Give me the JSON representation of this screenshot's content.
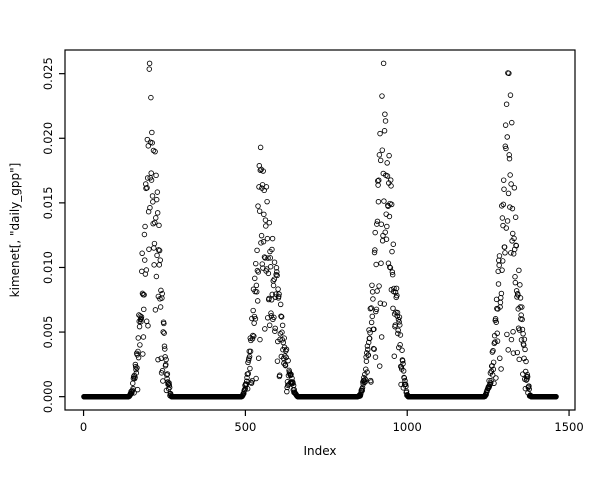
{
  "figure": {
    "background": "#ffffff",
    "foreground": "#000000"
  },
  "chart_data": {
    "type": "scatter",
    "title": "",
    "xlabel": "Index",
    "ylabel": "kimenet[, \"daily_gpp\"]",
    "xlim": [
      0,
      1500
    ],
    "ylim": [
      0.0,
      0.025
    ],
    "x_ticks": [
      0,
      500,
      1000,
      1500
    ],
    "x_tick_labels": [
      "0",
      "500",
      "1000",
      "1500"
    ],
    "y_ticks": [
      0.0,
      0.005,
      0.01,
      0.015,
      0.02,
      0.025
    ],
    "y_tick_labels": [
      "0.000",
      "0.005",
      "0.010",
      "0.015",
      "0.020",
      "0.025"
    ],
    "grid": false,
    "legend": false,
    "marker": {
      "shape": "open-circle",
      "color": "#000000"
    },
    "n_points": 1460,
    "seed": 42,
    "pattern": {
      "description": "Seasonal GPP time series: long runs of exact zeros separated by four noisy seasonal peaks",
      "zero_runs": [
        [
          1,
          138
        ],
        [
          272,
          487
        ],
        [
          662,
          846
        ],
        [
          1003,
          1236
        ],
        [
          1383,
          1460
        ]
      ],
      "peaks": [
        {
          "rise_start": 138,
          "peak": 207,
          "end": 272,
          "max": 0.0256
        },
        {
          "rise_start": 487,
          "peak": 548,
          "end": 662,
          "max": 0.0204
        },
        {
          "rise_start": 846,
          "peak": 928,
          "end": 1003,
          "max": 0.0256
        },
        {
          "rise_start": 1236,
          "peak": 1312,
          "end": 1383,
          "max": 0.0247
        }
      ]
    }
  }
}
